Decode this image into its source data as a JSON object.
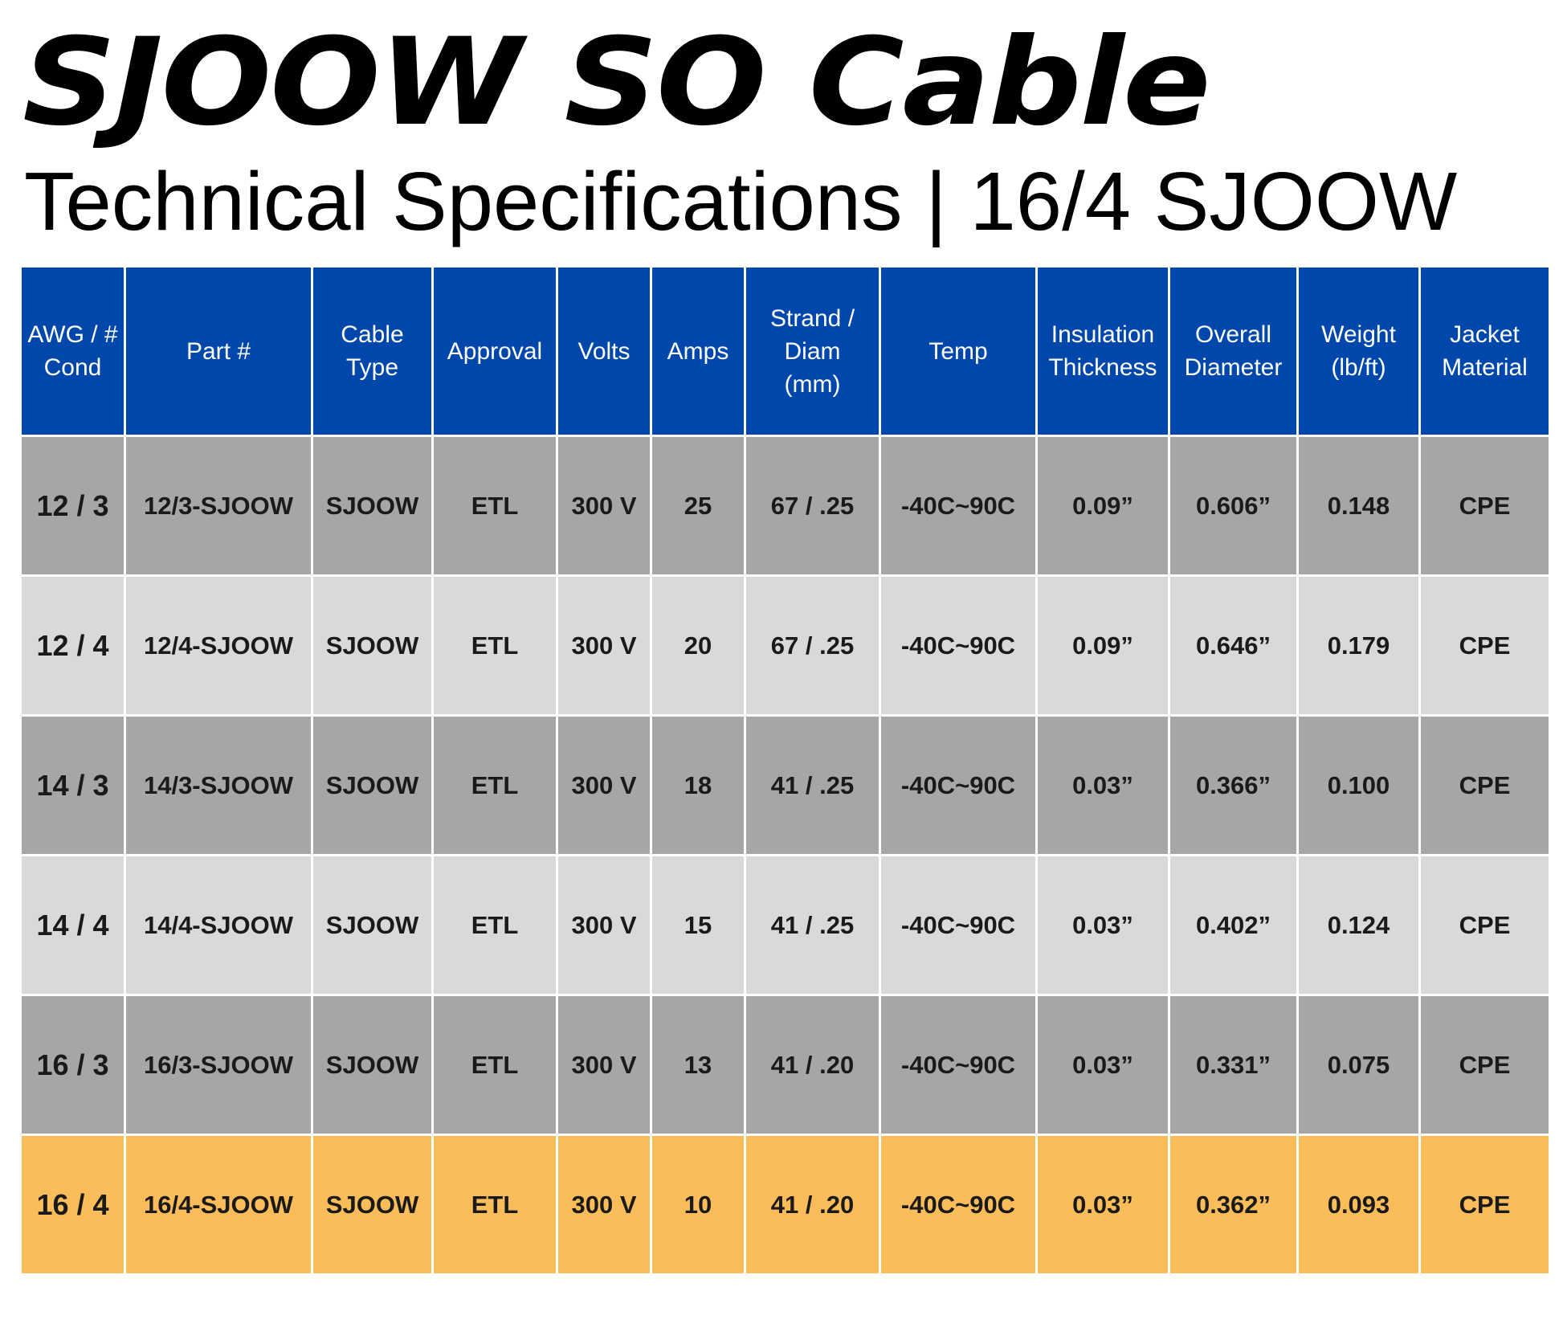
{
  "title": "SJOOW SO Cable",
  "subtitle": "Technical Specifications | 16/4 SJOOW",
  "colors": {
    "header_bg": "#0047ab",
    "row_dark": "#a6a6a6",
    "row_light": "#d9d9d9",
    "row_highlight": "#fbbd59"
  },
  "table": {
    "headers": [
      "AWG / #\nCond",
      "Part #",
      "Cable\nType",
      "Approval",
      "Volts",
      "Amps",
      "Strand /\nDiam\n(mm)",
      "Temp",
      "Insulation\nThickness",
      "Overall\nDiameter",
      "Weight\n(lb/ft)",
      "Jacket\nMaterial"
    ],
    "rows": [
      [
        "12 / 3",
        "12/3-SJOOW",
        "SJOOW",
        "ETL",
        "300 V",
        "25",
        "67 / .25",
        "-40C~90C",
        "0.09”",
        "0.606”",
        "0.148",
        "CPE"
      ],
      [
        "12 / 4",
        "12/4-SJOOW",
        "SJOOW",
        "ETL",
        "300 V",
        "20",
        "67 / .25",
        "-40C~90C",
        "0.09”",
        "0.646”",
        "0.179",
        "CPE"
      ],
      [
        "14 / 3",
        "14/3-SJOOW",
        "SJOOW",
        "ETL",
        "300 V",
        "18",
        "41 / .25",
        "-40C~90C",
        "0.03”",
        "0.366”",
        "0.100",
        "CPE"
      ],
      [
        "14 / 4",
        "14/4-SJOOW",
        "SJOOW",
        "ETL",
        "300 V",
        "15",
        "41 / .25",
        "-40C~90C",
        "0.03”",
        "0.402”",
        "0.124",
        "CPE"
      ],
      [
        "16 / 3",
        "16/3-SJOOW",
        "SJOOW",
        "ETL",
        "300 V",
        "13",
        "41 / .20",
        "-40C~90C",
        "0.03”",
        "0.331”",
        "0.075",
        "CPE"
      ],
      [
        "16 / 4",
        "16/4-SJOOW",
        "SJOOW",
        "ETL",
        "300 V",
        "10",
        "41 / .20",
        "-40C~90C",
        "0.03”",
        "0.362”",
        "0.093",
        "CPE"
      ]
    ]
  }
}
